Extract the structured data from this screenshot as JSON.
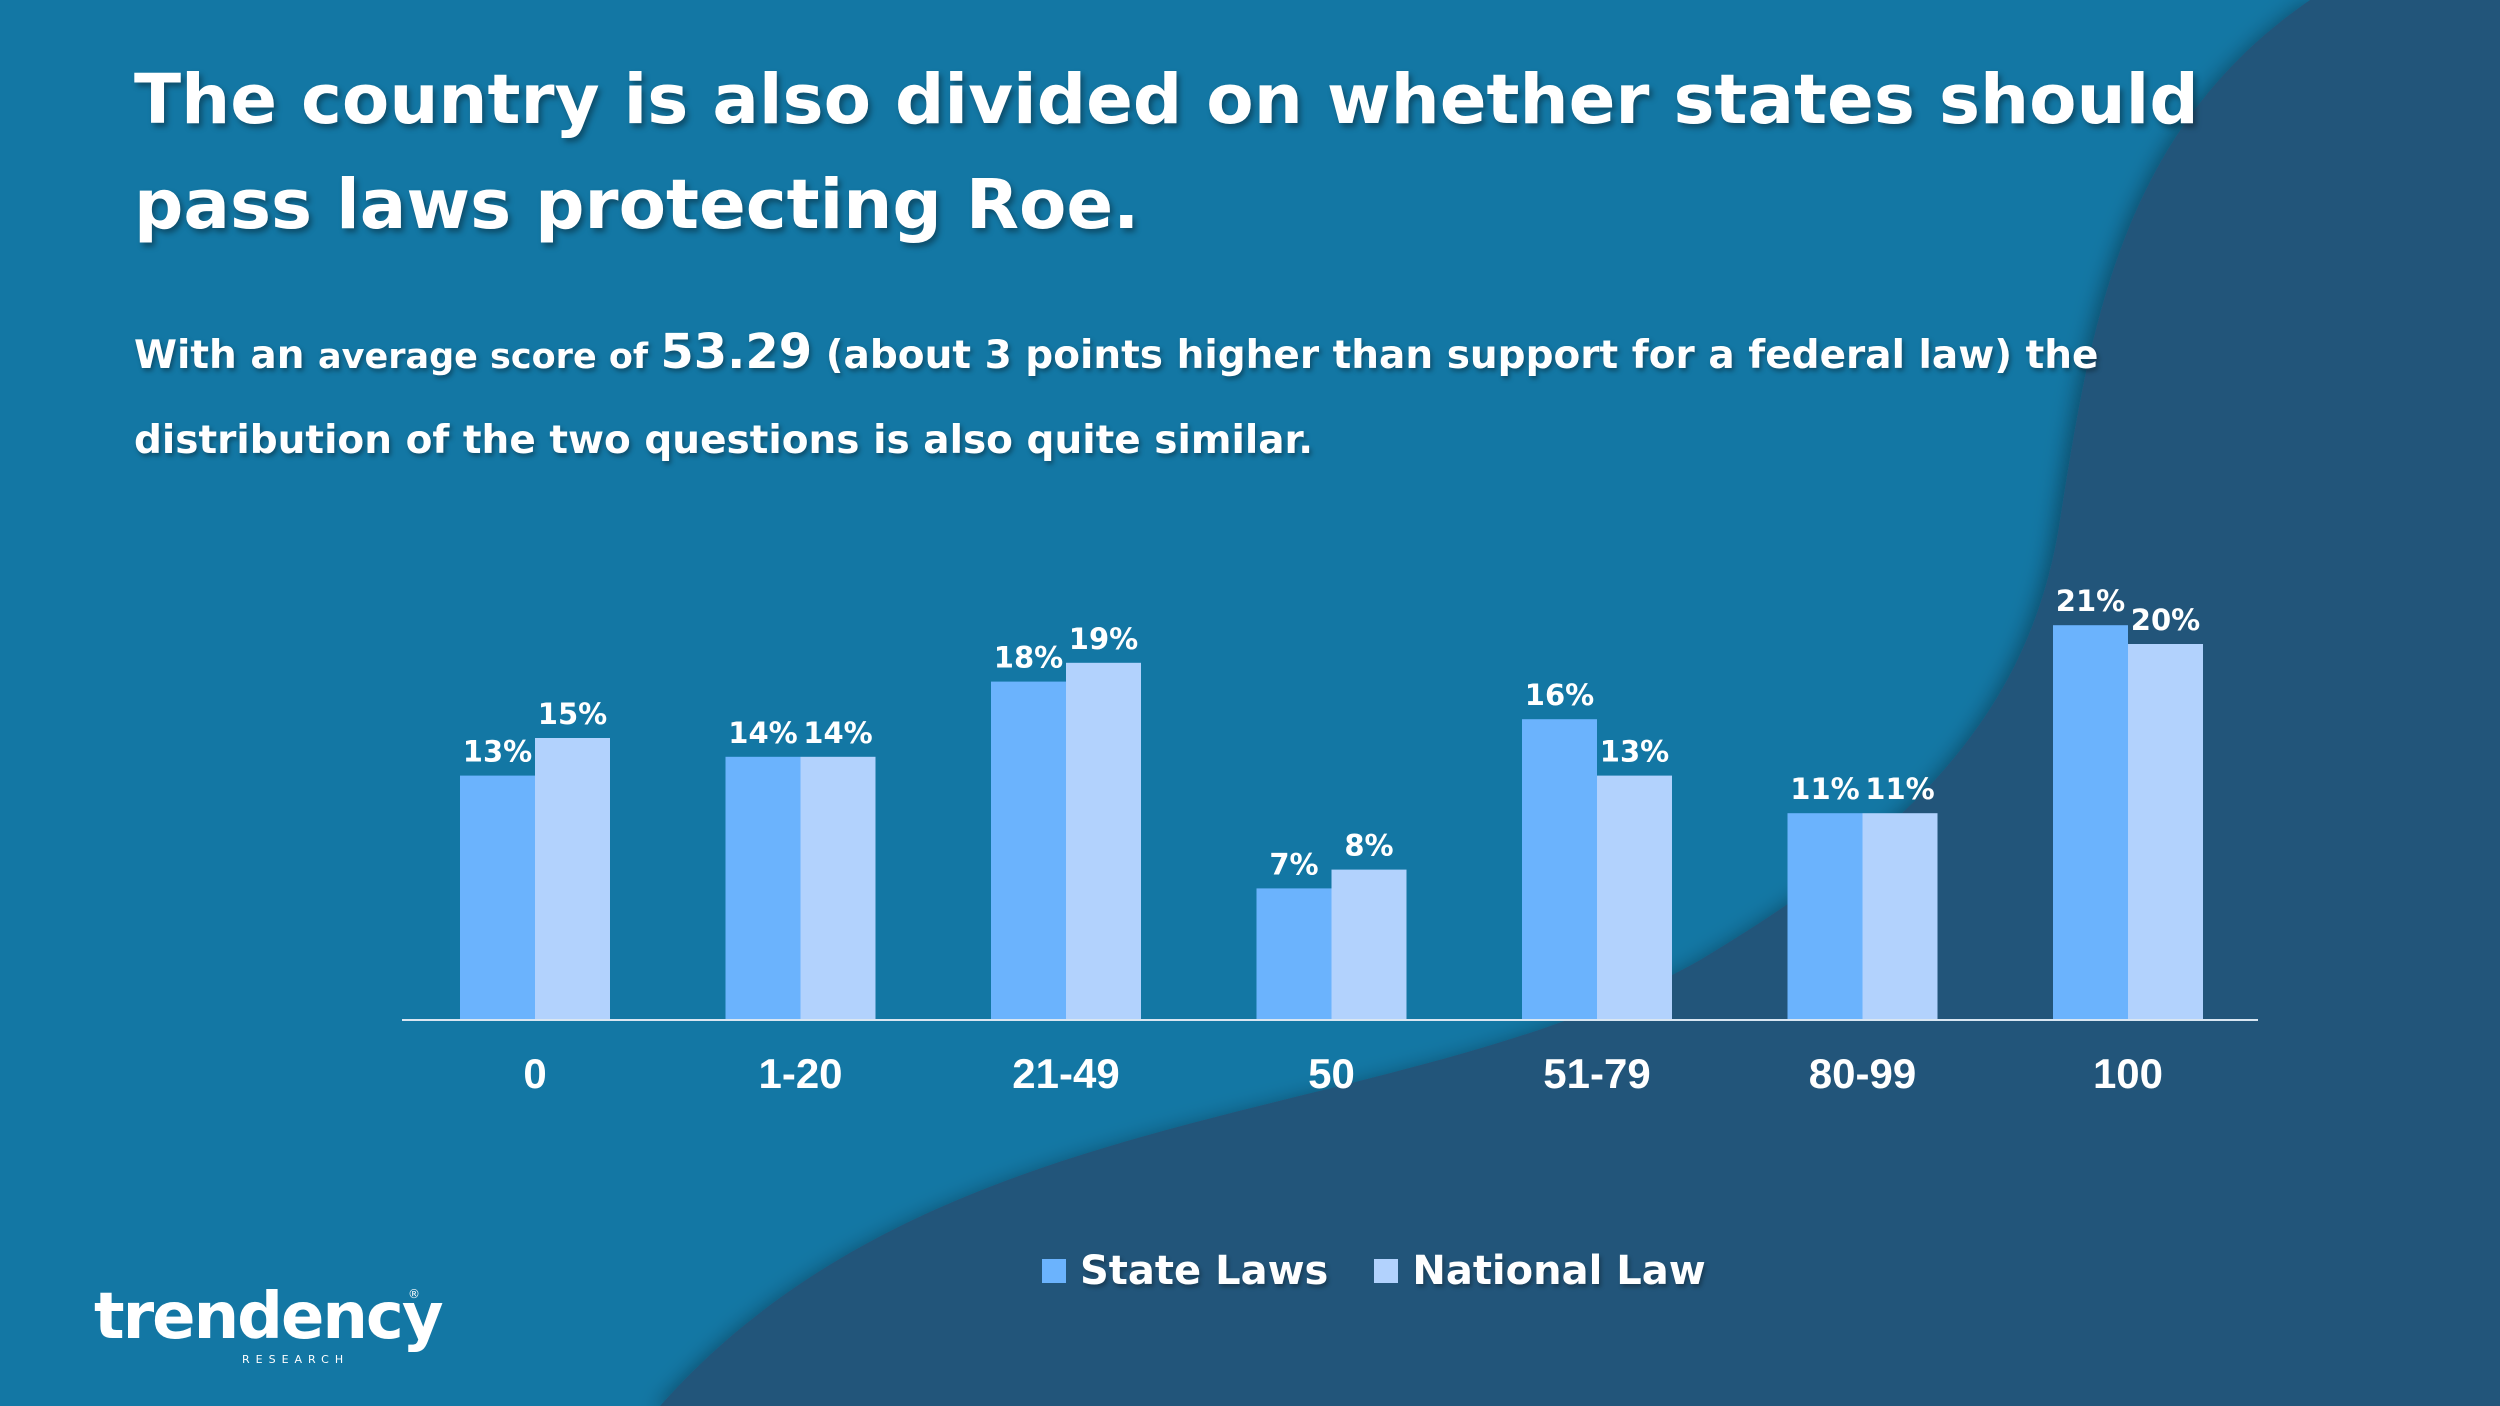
{
  "title": "The country is also divided on whether states should pass laws protecting Roe.",
  "subtitle": {
    "part1": "With an ",
    "part2": "average score of ",
    "score": "53.29",
    "part3": " (about 3 points higher than support for a federal law) the distribution of the two questions is also quite similar."
  },
  "colors": {
    "background": "#1377a4",
    "background_dark": "#23557a",
    "state": "#6bb3fd",
    "national": "#b2d2fd"
  },
  "logo": {
    "name": "trendency",
    "tagline": "RESEARCH",
    "mark": "®"
  },
  "chart_data": {
    "type": "bar",
    "categories": [
      "0",
      "1-20",
      "21-49",
      "50",
      "51-79",
      "80-99",
      "100"
    ],
    "series": [
      {
        "name": "State Laws",
        "values": [
          13,
          14,
          18,
          7,
          16,
          11,
          21
        ],
        "labels": [
          "13%",
          "14%",
          "18%",
          "7%",
          "16%",
          "11%",
          "21%"
        ]
      },
      {
        "name": "National Law",
        "values": [
          15,
          14,
          19,
          8,
          13,
          11,
          20
        ],
        "labels": [
          "15%",
          "14%",
          "19%",
          "8%",
          "13%",
          "11%",
          "20%"
        ]
      }
    ],
    "ylim": [
      0,
      21
    ],
    "legend": "bottom-center",
    "grid": false
  }
}
